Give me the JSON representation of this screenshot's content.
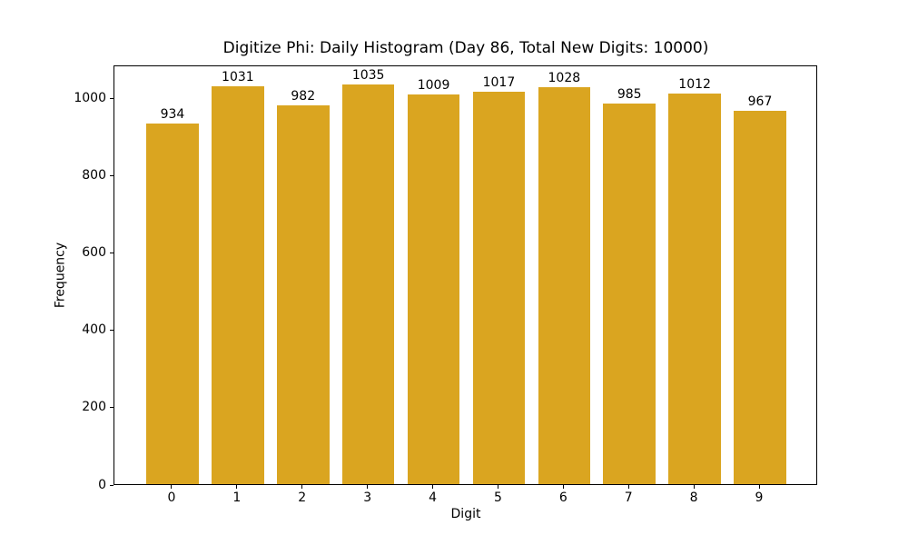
{
  "chart_data": {
    "type": "bar",
    "title": "Digitize Phi: Daily Histogram (Day 86, Total New Digits: 10000)",
    "xlabel": "Digit",
    "ylabel": "Frequency",
    "categories": [
      "0",
      "1",
      "2",
      "3",
      "4",
      "5",
      "6",
      "7",
      "8",
      "9"
    ],
    "values": [
      934,
      1031,
      982,
      1035,
      1009,
      1017,
      1028,
      985,
      1012,
      967
    ],
    "bar_value_labels": [
      "934",
      "1031",
      "982",
      "1035",
      "1009",
      "1017",
      "1028",
      "985",
      "1012",
      "967"
    ],
    "yticks": [
      "0",
      "200",
      "400",
      "600",
      "800",
      "1000"
    ],
    "ytick_values": [
      0,
      200,
      400,
      600,
      800,
      1000
    ],
    "ylim": [
      0,
      1086.75
    ],
    "bar_color": "#DAA520",
    "axis_color": "#000000",
    "background_color": "#ffffff",
    "grid": false,
    "legend": null,
    "frame": true
  }
}
